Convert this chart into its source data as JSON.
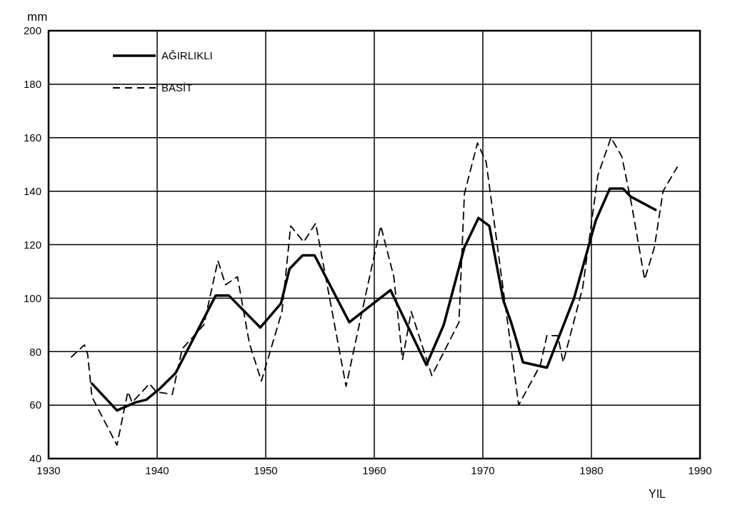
{
  "chart_data": {
    "type": "line",
    "xlabel": "YIL",
    "ylabel": "mm",
    "xlim": [
      1930,
      1990
    ],
    "xticks": [
      1930,
      1940,
      1950,
      1960,
      1970,
      1980,
      1990
    ],
    "ylim": [
      40,
      200
    ],
    "yticks": [
      40,
      60,
      80,
      100,
      120,
      140,
      160,
      180,
      200
    ],
    "grid": true,
    "legend": "top left",
    "series": [
      {
        "name": "AĞIRLIKLI",
        "color": "#000000",
        "line_style": "solid",
        "x": [
          1934,
          1936.3,
          1938,
          1939,
          1940.2,
          1941.7,
          1945.4,
          1946.6,
          1949.5,
          1951.4,
          1952.2,
          1953.4,
          1954.5,
          1957.7,
          1961.5,
          1964.8,
          1966.4,
          1968.3,
          1969.6,
          1970.6,
          1971.1,
          1971.9,
          1972.6,
          1973.7,
          1975.9,
          1978.4,
          1980.4,
          1981.7,
          1982.9,
          1983.6,
          1985.9
        ],
        "values": [
          68,
          58,
          61,
          62,
          66,
          72,
          101,
          101,
          89,
          98,
          111,
          116,
          116,
          91,
          103,
          75,
          90,
          119,
          130,
          127,
          116,
          99,
          91,
          76,
          74,
          100,
          129,
          141,
          141,
          138,
          133
        ]
      },
      {
        "name": "BASİT",
        "color": "#000000",
        "line_style": "dashed",
        "x": [
          1932.1,
          1933.3,
          1933.6,
          1934,
          1936.3,
          1937.3,
          1937.7,
          1939.3,
          1939.9,
          1941.4,
          1942.3,
          1944.3,
          1945.6,
          1946.3,
          1947.4,
          1948.5,
          1949.6,
          1951.5,
          1952.3,
          1953.5,
          1954.6,
          1957.4,
          1959.3,
          1960.6,
          1961.8,
          1962.6,
          1963.4,
          1965.3,
          1967.8,
          1968.3,
          1969.5,
          1970.3,
          1973.3,
          1975.3,
          1975.9,
          1976.9,
          1977.4,
          1979.2,
          1980.6,
          1981.8,
          1982.8,
          1983.7,
          1984.9,
          1985.8,
          1986.6,
          1987.9
        ],
        "values": [
          78,
          82.5,
          79,
          63,
          45,
          65,
          61,
          68,
          65,
          64,
          81,
          90,
          114,
          105,
          108,
          83,
          69,
          95,
          127,
          121,
          128,
          67,
          103,
          127,
          108,
          77,
          95,
          71,
          91,
          139,
          158,
          151,
          60,
          75,
          86,
          86,
          76,
          104,
          146,
          160,
          153,
          135,
          107,
          119,
          140,
          149
        ]
      }
    ]
  }
}
